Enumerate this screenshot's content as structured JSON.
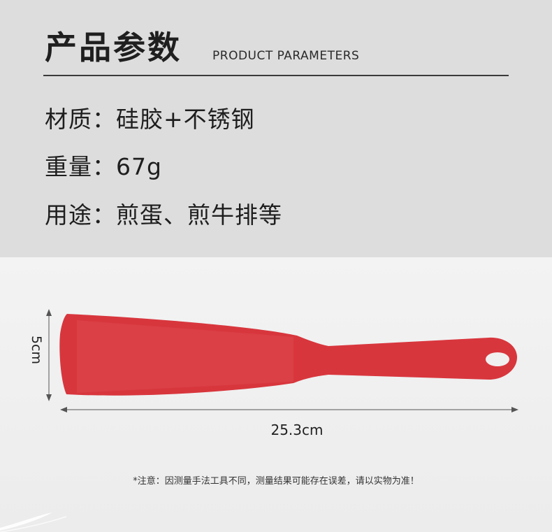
{
  "header": {
    "title_cn": "产品参数",
    "title_en": "PRODUCT PARAMETERS"
  },
  "specs": [
    {
      "text": "材质：硅胶+不锈钢"
    },
    {
      "text": "重量：67g"
    },
    {
      "text": "用途：煎蛋、煎牛排等"
    }
  ],
  "dimensions": {
    "height_label": "5cm",
    "length_label": "25.3cm"
  },
  "product": {
    "color": "#d8363d"
  },
  "note": "*注意：因测量手法工具不同，测量结果可能存在误差，请以实物为准！"
}
